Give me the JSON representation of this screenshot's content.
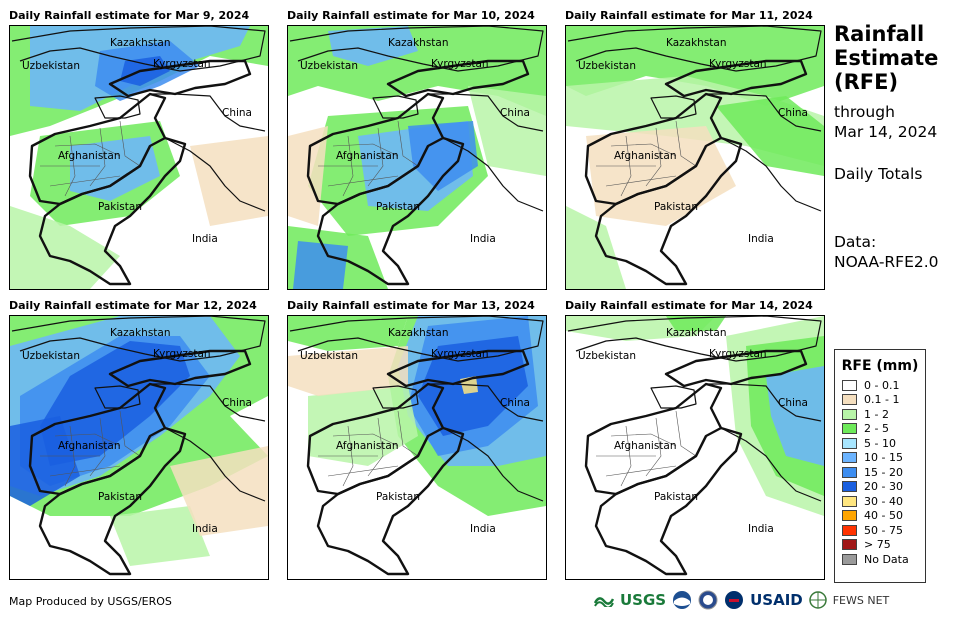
{
  "panels": [
    {
      "title": "Daily Rainfall estimate for Mar 9, 2024",
      "rain": "moderate-north"
    },
    {
      "title": "Daily Rainfall estimate for Mar 10, 2024",
      "rain": "moderate-east"
    },
    {
      "title": "Daily Rainfall estimate for Mar 11, 2024",
      "rain": "light"
    },
    {
      "title": "Daily Rainfall estimate for Mar 12, 2024",
      "rain": "heavy-west"
    },
    {
      "title": "Daily Rainfall estimate for Mar 13, 2024",
      "rain": "heavy-east"
    },
    {
      "title": "Daily Rainfall estimate for Mar 14, 2024",
      "rain": "light-east"
    }
  ],
  "place_labels": {
    "kazakhstan": "Kazakhstan",
    "uzbekistan": "Uzbekistan",
    "kyrgyzstan": "Kyrgyzstan",
    "china": "China",
    "afghanistan": "Afghanistan",
    "pakistan": "Pakistan",
    "india": "India"
  },
  "side": {
    "title_line1": "Rainfall",
    "title_line2": "Estimate",
    "title_line3": "(RFE)",
    "through": "through",
    "through_date": "Mar 14, 2024",
    "totals": "Daily Totals",
    "data_label": "Data:",
    "data_source": "NOAA-RFE2.0"
  },
  "legend": {
    "title": "RFE (mm)",
    "items": [
      {
        "label": "0 - 0.1",
        "color": "#ffffff"
      },
      {
        "label": "0.1 - 1",
        "color": "#f5dfbf"
      },
      {
        "label": "1 - 2",
        "color": "#b8f5a8"
      },
      {
        "label": "2 - 5",
        "color": "#6eea5a"
      },
      {
        "label": "5 - 10",
        "color": "#a8e6ff"
      },
      {
        "label": "10 - 15",
        "color": "#6cb4ff"
      },
      {
        "label": "15 - 20",
        "color": "#3d8df0"
      },
      {
        "label": "20 - 30",
        "color": "#1a5fe0"
      },
      {
        "label": "30 - 40",
        "color": "#ffe680"
      },
      {
        "label": "40 - 50",
        "color": "#ffa500"
      },
      {
        "label": "50 - 75",
        "color": "#ff3300"
      },
      {
        "label": "> 75",
        "color": "#a01818"
      },
      {
        "label": "No Data",
        "color": "#9a9a9a"
      }
    ]
  },
  "footer": "Map Produced by USGS/EROS",
  "logos": {
    "usgs": "USGS",
    "usaid": "USAID",
    "fewsnet": "FEWS NET"
  }
}
